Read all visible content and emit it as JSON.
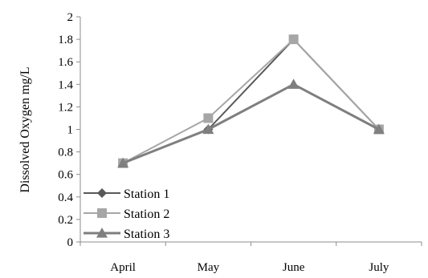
{
  "chart_data": {
    "type": "line",
    "categories": [
      "April",
      "May",
      "June",
      "July"
    ],
    "ylabel": "Dissolved Oxygen mg/L",
    "xlabel": "",
    "title": "",
    "ylim": [
      0,
      2
    ],
    "ytick_step": 0.2,
    "ytick_labels": [
      "0",
      "0.2",
      "0.4",
      "0.6",
      "0.8",
      "1",
      "1.2",
      "1.4",
      "1.6",
      "1.8",
      "2"
    ],
    "grid": false,
    "legend_position": "bottom-left",
    "series": [
      {
        "name": "Station 1",
        "values": [
          0.7,
          1.0,
          1.8,
          1.0
        ],
        "color": "#595959",
        "marker": "diamond"
      },
      {
        "name": "Station 2",
        "values": [
          0.7,
          1.1,
          1.8,
          1.0
        ],
        "color": "#a6a6a6",
        "marker": "square"
      },
      {
        "name": "Station 3",
        "values": [
          0.7,
          1.0,
          1.4,
          1.0
        ],
        "color": "#7f7f7f",
        "marker": "triangle"
      }
    ]
  }
}
